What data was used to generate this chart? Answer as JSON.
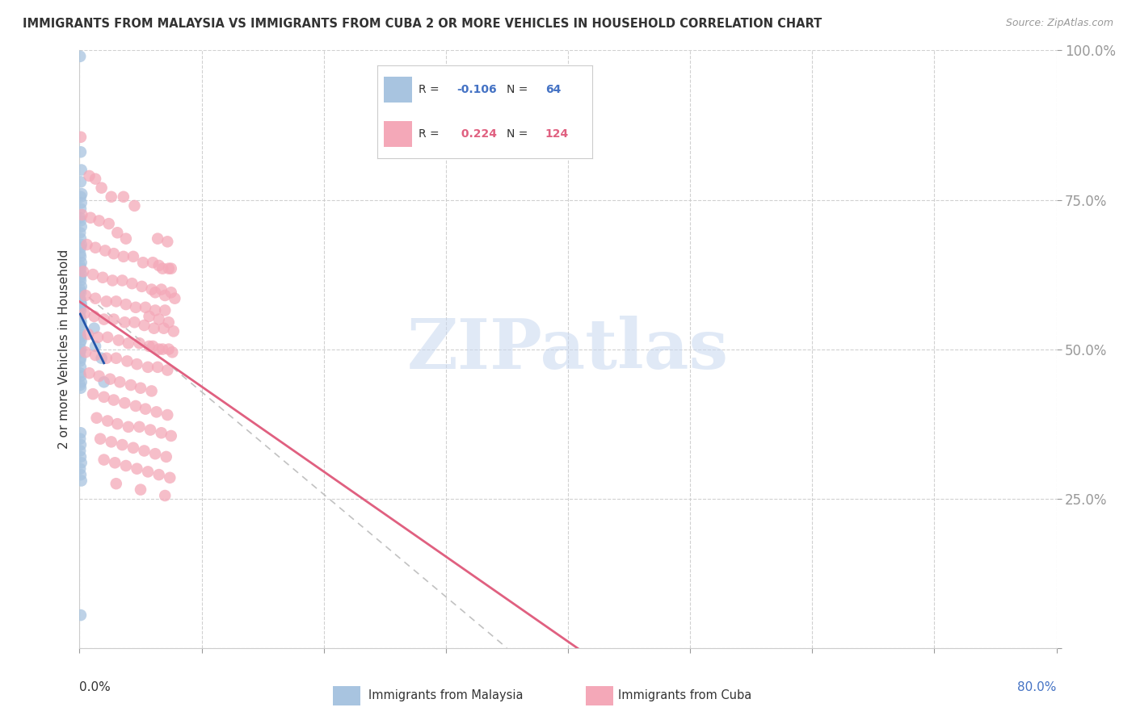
{
  "title": "IMMIGRANTS FROM MALAYSIA VS IMMIGRANTS FROM CUBA 2 OR MORE VEHICLES IN HOUSEHOLD CORRELATION CHART",
  "source": "Source: ZipAtlas.com",
  "ylabel": "2 or more Vehicles in Household",
  "malaysia_R": -0.106,
  "malaysia_N": 64,
  "cuba_R": 0.224,
  "cuba_N": 124,
  "malaysia_color": "#a8c4e0",
  "cuba_color": "#f4a8b8",
  "malaysia_line_color": "#2255aa",
  "cuba_line_color": "#e06080",
  "ref_line_color": "#bbbbbb",
  "watermark_text": "ZIPatlas",
  "watermark_color": "#c8d8f0",
  "background_color": "#ffffff",
  "xlim": [
    0.0,
    0.8
  ],
  "ylim": [
    0.0,
    1.0
  ],
  "malaysia_scatter": [
    [
      0.0005,
      0.99
    ],
    [
      0.001,
      0.83
    ],
    [
      0.0015,
      0.8
    ],
    [
      0.001,
      0.78
    ],
    [
      0.0018,
      0.76
    ],
    [
      0.001,
      0.755
    ],
    [
      0.0015,
      0.745
    ],
    [
      0.001,
      0.735
    ],
    [
      0.0005,
      0.72
    ],
    [
      0.001,
      0.715
    ],
    [
      0.0015,
      0.705
    ],
    [
      0.0005,
      0.695
    ],
    [
      0.001,
      0.685
    ],
    [
      0.0015,
      0.675
    ],
    [
      0.001,
      0.67
    ],
    [
      0.0005,
      0.66
    ],
    [
      0.001,
      0.655
    ],
    [
      0.0015,
      0.645
    ],
    [
      0.0005,
      0.64
    ],
    [
      0.001,
      0.635
    ],
    [
      0.0015,
      0.625
    ],
    [
      0.0005,
      0.62
    ],
    [
      0.001,
      0.615
    ],
    [
      0.0015,
      0.605
    ],
    [
      0.0005,
      0.6
    ],
    [
      0.001,
      0.595
    ],
    [
      0.0005,
      0.585
    ],
    [
      0.001,
      0.58
    ],
    [
      0.0015,
      0.575
    ],
    [
      0.0005,
      0.57
    ],
    [
      0.001,
      0.565
    ],
    [
      0.0005,
      0.555
    ],
    [
      0.001,
      0.55
    ],
    [
      0.0015,
      0.545
    ],
    [
      0.0005,
      0.54
    ],
    [
      0.001,
      0.535
    ],
    [
      0.0005,
      0.525
    ],
    [
      0.001,
      0.52
    ],
    [
      0.0015,
      0.515
    ],
    [
      0.0005,
      0.51
    ],
    [
      0.001,
      0.5
    ],
    [
      0.0005,
      0.495
    ],
    [
      0.001,
      0.485
    ],
    [
      0.0005,
      0.48
    ],
    [
      0.001,
      0.47
    ],
    [
      0.0005,
      0.46
    ],
    [
      0.001,
      0.455
    ],
    [
      0.0015,
      0.445
    ],
    [
      0.0005,
      0.44
    ],
    [
      0.001,
      0.435
    ],
    [
      0.001,
      0.36
    ],
    [
      0.0005,
      0.35
    ],
    [
      0.001,
      0.34
    ],
    [
      0.0005,
      0.33
    ],
    [
      0.001,
      0.32
    ],
    [
      0.0015,
      0.31
    ],
    [
      0.0005,
      0.3
    ],
    [
      0.001,
      0.29
    ],
    [
      0.0015,
      0.28
    ],
    [
      0.001,
      0.055
    ],
    [
      0.012,
      0.535
    ],
    [
      0.013,
      0.505
    ],
    [
      0.018,
      0.485
    ],
    [
      0.02,
      0.445
    ]
  ],
  "cuba_scatter": [
    [
      0.001,
      0.855
    ],
    [
      0.008,
      0.79
    ],
    [
      0.013,
      0.785
    ],
    [
      0.018,
      0.77
    ],
    [
      0.026,
      0.755
    ],
    [
      0.036,
      0.755
    ],
    [
      0.045,
      0.74
    ],
    [
      0.002,
      0.725
    ],
    [
      0.009,
      0.72
    ],
    [
      0.016,
      0.715
    ],
    [
      0.024,
      0.71
    ],
    [
      0.031,
      0.695
    ],
    [
      0.038,
      0.685
    ],
    [
      0.006,
      0.675
    ],
    [
      0.013,
      0.67
    ],
    [
      0.021,
      0.665
    ],
    [
      0.028,
      0.66
    ],
    [
      0.036,
      0.655
    ],
    [
      0.044,
      0.655
    ],
    [
      0.052,
      0.645
    ],
    [
      0.06,
      0.645
    ],
    [
      0.068,
      0.635
    ],
    [
      0.075,
      0.635
    ],
    [
      0.003,
      0.63
    ],
    [
      0.011,
      0.625
    ],
    [
      0.019,
      0.62
    ],
    [
      0.027,
      0.615
    ],
    [
      0.035,
      0.615
    ],
    [
      0.043,
      0.61
    ],
    [
      0.051,
      0.605
    ],
    [
      0.059,
      0.6
    ],
    [
      0.067,
      0.6
    ],
    [
      0.075,
      0.595
    ],
    [
      0.005,
      0.59
    ],
    [
      0.013,
      0.585
    ],
    [
      0.022,
      0.58
    ],
    [
      0.03,
      0.58
    ],
    [
      0.038,
      0.575
    ],
    [
      0.046,
      0.57
    ],
    [
      0.054,
      0.57
    ],
    [
      0.062,
      0.565
    ],
    [
      0.07,
      0.565
    ],
    [
      0.004,
      0.56
    ],
    [
      0.012,
      0.555
    ],
    [
      0.02,
      0.55
    ],
    [
      0.028,
      0.55
    ],
    [
      0.037,
      0.545
    ],
    [
      0.045,
      0.545
    ],
    [
      0.053,
      0.54
    ],
    [
      0.061,
      0.535
    ],
    [
      0.069,
      0.535
    ],
    [
      0.077,
      0.53
    ],
    [
      0.007,
      0.525
    ],
    [
      0.015,
      0.52
    ],
    [
      0.023,
      0.52
    ],
    [
      0.032,
      0.515
    ],
    [
      0.04,
      0.51
    ],
    [
      0.049,
      0.51
    ],
    [
      0.057,
      0.505
    ],
    [
      0.065,
      0.5
    ],
    [
      0.073,
      0.5
    ],
    [
      0.005,
      0.495
    ],
    [
      0.013,
      0.49
    ],
    [
      0.022,
      0.485
    ],
    [
      0.03,
      0.485
    ],
    [
      0.039,
      0.48
    ],
    [
      0.047,
      0.475
    ],
    [
      0.056,
      0.47
    ],
    [
      0.064,
      0.47
    ],
    [
      0.072,
      0.465
    ],
    [
      0.008,
      0.46
    ],
    [
      0.016,
      0.455
    ],
    [
      0.025,
      0.45
    ],
    [
      0.033,
      0.445
    ],
    [
      0.042,
      0.44
    ],
    [
      0.05,
      0.435
    ],
    [
      0.059,
      0.43
    ],
    [
      0.011,
      0.425
    ],
    [
      0.02,
      0.42
    ],
    [
      0.028,
      0.415
    ],
    [
      0.037,
      0.41
    ],
    [
      0.046,
      0.405
    ],
    [
      0.054,
      0.4
    ],
    [
      0.063,
      0.395
    ],
    [
      0.072,
      0.39
    ],
    [
      0.014,
      0.385
    ],
    [
      0.023,
      0.38
    ],
    [
      0.031,
      0.375
    ],
    [
      0.04,
      0.37
    ],
    [
      0.049,
      0.37
    ],
    [
      0.058,
      0.365
    ],
    [
      0.067,
      0.36
    ],
    [
      0.075,
      0.355
    ],
    [
      0.017,
      0.35
    ],
    [
      0.026,
      0.345
    ],
    [
      0.035,
      0.34
    ],
    [
      0.044,
      0.335
    ],
    [
      0.053,
      0.33
    ],
    [
      0.062,
      0.325
    ],
    [
      0.071,
      0.32
    ],
    [
      0.02,
      0.315
    ],
    [
      0.029,
      0.31
    ],
    [
      0.038,
      0.305
    ],
    [
      0.047,
      0.3
    ],
    [
      0.056,
      0.295
    ],
    [
      0.065,
      0.29
    ],
    [
      0.074,
      0.285
    ],
    [
      0.03,
      0.275
    ],
    [
      0.05,
      0.265
    ],
    [
      0.07,
      0.255
    ],
    [
      0.06,
      0.505
    ],
    [
      0.068,
      0.5
    ],
    [
      0.076,
      0.495
    ],
    [
      0.057,
      0.555
    ],
    [
      0.065,
      0.55
    ],
    [
      0.073,
      0.545
    ],
    [
      0.062,
      0.595
    ],
    [
      0.07,
      0.59
    ],
    [
      0.078,
      0.585
    ],
    [
      0.065,
      0.64
    ],
    [
      0.073,
      0.635
    ],
    [
      0.064,
      0.685
    ],
    [
      0.072,
      0.68
    ]
  ]
}
